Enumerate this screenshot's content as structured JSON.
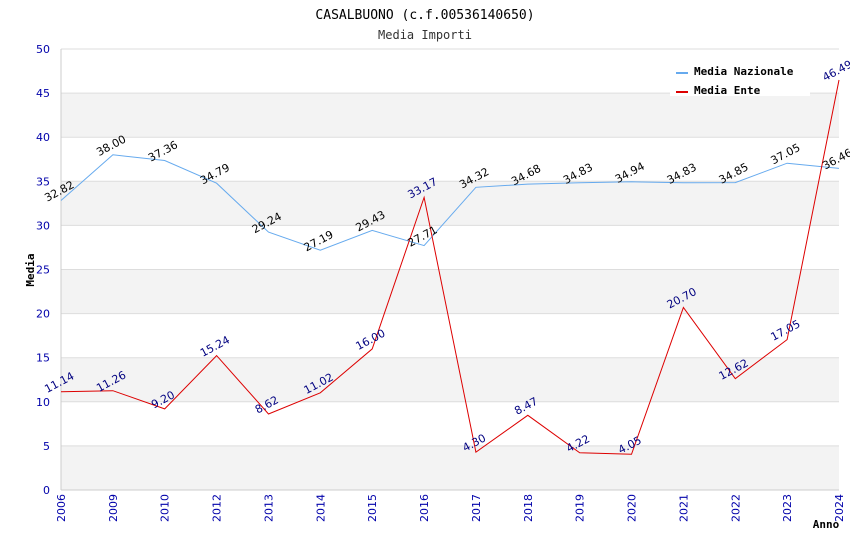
{
  "chart_data": {
    "type": "line",
    "title": "CASALBUONO (c.f.00536140650)",
    "subtitle": "Media Importi",
    "xlabel": "Anno",
    "ylabel": "Media",
    "ylim": [
      0,
      50
    ],
    "yticks": [
      0,
      5,
      10,
      15,
      20,
      25,
      30,
      35,
      40,
      45,
      50
    ],
    "categories": [
      "2006",
      "2009",
      "2010",
      "2012",
      "2013",
      "2014",
      "2015",
      "2016",
      "2017",
      "2018",
      "2019",
      "2020",
      "2021",
      "2022",
      "2023",
      "2024"
    ],
    "series": [
      {
        "name": "Media Nazionale",
        "color": "#66aaee",
        "values": [
          32.82,
          38.0,
          37.36,
          34.79,
          29.24,
          27.19,
          29.43,
          27.71,
          34.32,
          34.68,
          34.83,
          34.94,
          34.83,
          34.85,
          37.05,
          36.46
        ],
        "labels": [
          "32.82",
          "38.00",
          "37.36",
          "34.79",
          "29.24",
          "27.19",
          "29.43",
          "27.71",
          "34.32",
          "34.68",
          "34.83",
          "34.94",
          "34.83",
          "34.85",
          "37.05",
          "36.46"
        ]
      },
      {
        "name": "Media Ente",
        "color": "#dd0000",
        "values": [
          11.14,
          11.26,
          9.2,
          15.24,
          8.62,
          11.02,
          16.0,
          33.17,
          4.3,
          8.47,
          4.22,
          4.05,
          20.7,
          12.62,
          17.05,
          46.49
        ],
        "labels": [
          "11.14",
          "11.26",
          "9.20",
          "15.24",
          "8.62",
          "11.02",
          "16.00",
          "33.17",
          "4.30",
          "8.47",
          "4.22",
          "4.05",
          "20.70",
          "12.62",
          "17.05",
          "46.49"
        ]
      }
    ],
    "grid": true,
    "legend_position": "top-right"
  }
}
